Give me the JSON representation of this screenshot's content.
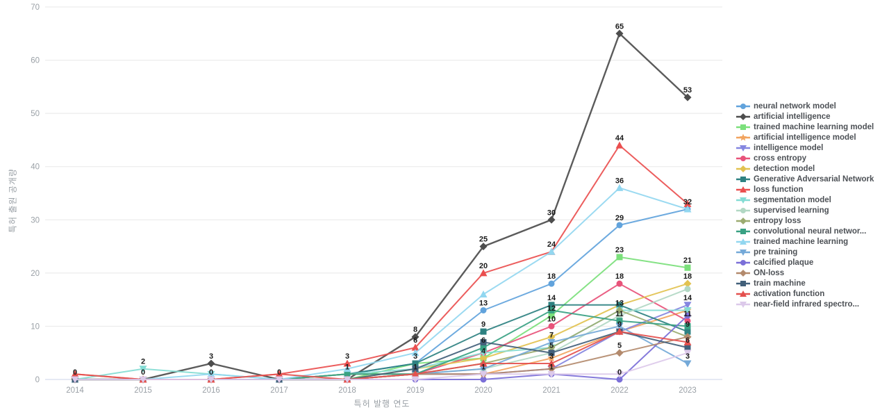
{
  "chart_data": {
    "type": "line",
    "title": "",
    "xlabel": "특허 발행 연도",
    "ylabel": "특허 출원 공개량",
    "x": [
      "2014",
      "2015",
      "2016",
      "2017",
      "2018",
      "2019",
      "2020",
      "2021",
      "2022",
      "2023"
    ],
    "ylim": [
      0,
      70
    ],
    "yticks": [
      0,
      10,
      20,
      30,
      40,
      50,
      60,
      70
    ],
    "grid": true,
    "legend_position": "right",
    "series": [
      {
        "name": "neural network model",
        "color": "#61a3dc",
        "marker": "circle",
        "values": [
          0,
          0,
          0,
          0,
          1,
          3,
          13,
          18,
          29,
          32
        ]
      },
      {
        "name": "artificial intelligence",
        "color": "#4d4d4d",
        "marker": "diamond",
        "values": [
          0,
          0,
          3,
          0,
          0,
          8,
          25,
          30,
          65,
          53
        ]
      },
      {
        "name": "trained machine learning model",
        "color": "#7be07b",
        "marker": "rect",
        "values": [
          0,
          0,
          0,
          0,
          0,
          3,
          4,
          12,
          23,
          21
        ]
      },
      {
        "name": "artificial intelligence model",
        "color": "#f2a45f",
        "marker": "star",
        "values": [
          0,
          0,
          0,
          0,
          0,
          1,
          1,
          4,
          9,
          13
        ]
      },
      {
        "name": "intelligence model",
        "color": "#8486e0",
        "marker": "triangle-down",
        "values": [
          0,
          0,
          0,
          0,
          0,
          1,
          1,
          2,
          9,
          14
        ]
      },
      {
        "name": "cross entropy",
        "color": "#e8537a",
        "marker": "circle",
        "values": [
          0,
          0,
          0,
          0,
          0,
          1,
          5,
          10,
          18,
          11
        ]
      },
      {
        "name": "detection model",
        "color": "#e2c250",
        "marker": "diamond",
        "values": [
          0,
          0,
          0,
          0,
          0,
          2,
          4,
          8,
          14,
          18
        ]
      },
      {
        "name": "Generative Adversarial Network",
        "color": "#2e8181",
        "marker": "rect",
        "values": [
          0,
          0,
          0,
          0,
          1,
          3,
          9,
          14,
          14,
          9
        ]
      },
      {
        "name": "loss function",
        "color": "#ea4f4f",
        "marker": "triangle",
        "values": [
          1,
          0,
          0,
          1,
          3,
          6,
          20,
          24,
          44,
          33
        ]
      },
      {
        "name": "segmentation model",
        "color": "#84dcd4",
        "marker": "triangle-down",
        "values": [
          0,
          2,
          1,
          0,
          1,
          2,
          5,
          6,
          13,
          13
        ]
      },
      {
        "name": "supervised learning",
        "color": "#b2d8c4",
        "marker": "circle",
        "values": [
          0,
          0,
          0,
          0,
          0,
          1,
          2,
          5,
          12,
          17
        ]
      },
      {
        "name": "entropy loss",
        "color": "#9cab70",
        "marker": "diamond",
        "values": [
          0,
          0,
          0,
          0,
          1,
          1,
          3,
          6,
          13,
          8
        ]
      },
      {
        "name": "convolutional neural networ...",
        "color": "#38a183",
        "marker": "rect",
        "values": [
          0,
          0,
          0,
          0,
          1,
          1,
          6,
          13,
          11,
          10
        ]
      },
      {
        "name": "trained machine learning",
        "color": "#92d7f0",
        "marker": "triangle",
        "values": [
          0,
          0,
          1,
          0,
          2,
          5,
          16,
          24,
          36,
          32
        ]
      },
      {
        "name": "pre training",
        "color": "#74a9d8",
        "marker": "triangle-down",
        "values": [
          0,
          0,
          0,
          0,
          0,
          1,
          2,
          7,
          10,
          3
        ]
      },
      {
        "name": "calcified plaque",
        "color": "#7b6fd8",
        "marker": "circle",
        "values": [
          0,
          0,
          0,
          0,
          0,
          0,
          0,
          1,
          0,
          12
        ]
      },
      {
        "name": "ON-loss",
        "color": "#b38a6d",
        "marker": "diamond",
        "values": [
          0,
          0,
          0,
          0,
          0,
          1,
          1,
          2,
          5,
          8
        ]
      },
      {
        "name": "train machine",
        "color": "#42607a",
        "marker": "rect",
        "values": [
          0,
          0,
          0,
          0,
          0,
          2,
          7,
          5,
          9,
          6
        ]
      },
      {
        "name": "activation function",
        "color": "#e4504e",
        "marker": "triangle",
        "values": [
          1,
          0,
          0,
          1,
          0,
          1,
          3,
          3,
          9,
          7
        ]
      },
      {
        "name": "near-field infrared spectro...",
        "color": "#dcc9ea",
        "marker": "triangle-down",
        "values": [
          0,
          0,
          0,
          0,
          0,
          0,
          1,
          1,
          1,
          5
        ]
      }
    ],
    "point_labels": [
      [
        1,
        0
      ],
      [
        9,
        1
      ],
      [
        1,
        1
      ],
      [
        1,
        2
      ],
      [
        0,
        2
      ],
      [
        1,
        3
      ],
      [
        8,
        4
      ],
      [
        7,
        4
      ],
      [
        1,
        5
      ],
      [
        8,
        5
      ],
      [
        7,
        5
      ],
      [
        12,
        5
      ],
      [
        1,
        6
      ],
      [
        8,
        6
      ],
      [
        0,
        6
      ],
      [
        7,
        6
      ],
      [
        12,
        6
      ],
      [
        6,
        6
      ],
      [
        3,
        6
      ],
      [
        1,
        7
      ],
      [
        8,
        7
      ],
      [
        0,
        7
      ],
      [
        7,
        7
      ],
      [
        2,
        7
      ],
      [
        5,
        7
      ],
      [
        14,
        7
      ],
      [
        17,
        7
      ],
      [
        18,
        7
      ],
      [
        15,
        7
      ],
      [
        1,
        8
      ],
      [
        8,
        8
      ],
      [
        13,
        8
      ],
      [
        0,
        8
      ],
      [
        2,
        8
      ],
      [
        5,
        8
      ],
      [
        9,
        8
      ],
      [
        12,
        8
      ],
      [
        18,
        8
      ],
      [
        16,
        8
      ],
      [
        15,
        8
      ],
      [
        1,
        9
      ],
      [
        0,
        9
      ],
      [
        2,
        9
      ],
      [
        6,
        9
      ],
      [
        4,
        9
      ],
      [
        5,
        9
      ],
      [
        7,
        9
      ],
      [
        17,
        9
      ],
      [
        14,
        9
      ]
    ],
    "colors": {
      "grid_line": "#e8e8e8",
      "axis_line": "#ccd3ea",
      "tick_text": "#9aa0a6",
      "point_label_text": "#1a1a1a"
    }
  }
}
